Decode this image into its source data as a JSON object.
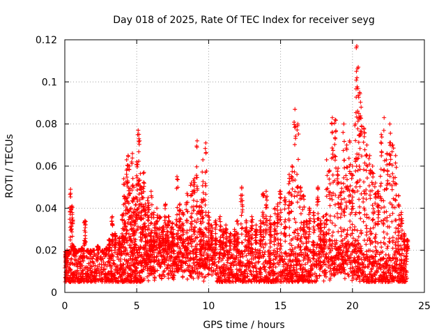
{
  "chart_data": {
    "type": "scatter",
    "title": "Day 018 of 2025, Rate Of TEC Index for receiver seyg",
    "xlabel": "GPS time / hours",
    "ylabel": "ROTI / TECUs",
    "xlim": [
      0,
      25
    ],
    "ylim": [
      0,
      0.12
    ],
    "xticks": [
      "0",
      "5",
      "10",
      "15",
      "20",
      "25"
    ],
    "yticks": [
      "0",
      "0.02",
      "0.04",
      "0.06",
      "0.08",
      "0.1",
      "0.12"
    ],
    "grid": true,
    "legend": "none",
    "marker": "plus",
    "color": "#ff0000",
    "series": [
      {
        "x": [
          0.1,
          0.3,
          0.4,
          0.5,
          0.6,
          0.8,
          1.0,
          1.2,
          1.4,
          1.6,
          1.8,
          2.0,
          2.3,
          2.6,
          2.9,
          3.1,
          3.3,
          3.5,
          3.8,
          4.0,
          4.1,
          4.2,
          4.3,
          4.4,
          4.5,
          4.6,
          4.7,
          4.8,
          4.9,
          5.0,
          5.1,
          5.2,
          5.3,
          5.4,
          5.5,
          5.6,
          5.8,
          6.0,
          6.2,
          6.4,
          6.6,
          6.8,
          7.0,
          7.2,
          7.5,
          7.8,
          8.0,
          8.2,
          8.5,
          8.8,
          9.0,
          9.2,
          9.4,
          9.5,
          9.6,
          9.8,
          10.0,
          10.2,
          10.5,
          10.8,
          11.0,
          11.2,
          11.5,
          11.8,
          12.0,
          12.3,
          12.6,
          12.8,
          13.0,
          13.3,
          13.6,
          13.8,
          14.0,
          14.3,
          14.6,
          14.8,
          15.0,
          15.3,
          15.6,
          15.8,
          16.0,
          16.2,
          16.4,
          16.6,
          16.8,
          17.0,
          17.3,
          17.6,
          17.8,
          18.0,
          18.2,
          18.4,
          18.6,
          18.8,
          19.0,
          19.2,
          19.4,
          19.6,
          19.8,
          20.0,
          20.2,
          20.3,
          20.4,
          20.5,
          20.6,
          20.8,
          21.0,
          21.2,
          21.4,
          21.6,
          21.8,
          22.0,
          22.2,
          22.4,
          22.6,
          22.8,
          23.0,
          23.2,
          23.4,
          23.6,
          23.8
        ],
        "y": [
          0.014,
          0.018,
          0.049,
          0.041,
          0.022,
          0.019,
          0.02,
          0.021,
          0.034,
          0.02,
          0.018,
          0.02,
          0.022,
          0.019,
          0.021,
          0.025,
          0.036,
          0.028,
          0.026,
          0.037,
          0.054,
          0.045,
          0.063,
          0.065,
          0.06,
          0.04,
          0.066,
          0.05,
          0.045,
          0.062,
          0.077,
          0.072,
          0.05,
          0.045,
          0.057,
          0.042,
          0.045,
          0.048,
          0.038,
          0.04,
          0.036,
          0.031,
          0.042,
          0.036,
          0.033,
          0.055,
          0.042,
          0.038,
          0.047,
          0.052,
          0.054,
          0.072,
          0.041,
          0.044,
          0.063,
          0.071,
          0.038,
          0.032,
          0.034,
          0.036,
          0.03,
          0.032,
          0.028,
          0.03,
          0.034,
          0.05,
          0.034,
          0.029,
          0.036,
          0.032,
          0.034,
          0.047,
          0.048,
          0.036,
          0.04,
          0.042,
          0.048,
          0.045,
          0.056,
          0.06,
          0.087,
          0.08,
          0.05,
          0.046,
          0.034,
          0.04,
          0.038,
          0.05,
          0.034,
          0.036,
          0.063,
          0.058,
          0.083,
          0.082,
          0.059,
          0.052,
          0.08,
          0.07,
          0.072,
          0.06,
          0.08,
          0.117,
          0.107,
          0.095,
          0.088,
          0.078,
          0.07,
          0.065,
          0.06,
          0.052,
          0.048,
          0.075,
          0.083,
          0.066,
          0.08,
          0.07,
          0.065,
          0.046,
          0.038,
          0.028,
          0.025
        ],
        "baseline_band": [
          0.005,
          0.02
        ]
      }
    ]
  }
}
